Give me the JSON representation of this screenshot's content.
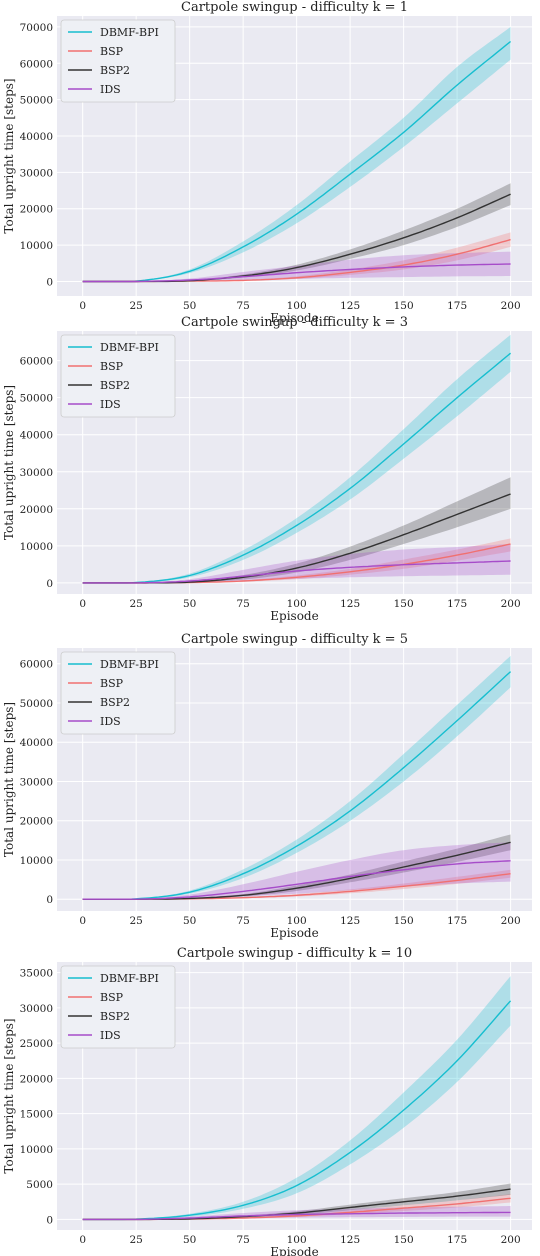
{
  "chart_data": [
    {
      "type": "line",
      "title": "Cartpole swingup - difficulty k = 1",
      "xlabel": "Episode",
      "ylabel": "Total upright time [steps]",
      "xlim": [
        -12,
        210
      ],
      "ylim": [
        -4000,
        73000
      ],
      "xticks": [
        0,
        25,
        50,
        75,
        100,
        125,
        150,
        175,
        200
      ],
      "yticks": [
        0,
        10000,
        20000,
        30000,
        40000,
        50000,
        60000,
        70000
      ],
      "grid": true,
      "legend_position": "top-left",
      "x": [
        0,
        25,
        50,
        75,
        100,
        125,
        150,
        175,
        200
      ],
      "series": [
        {
          "name": "DBMF-BPI",
          "color": "#17becf",
          "values": [
            0,
            100,
            2800,
            9500,
            18500,
            29500,
            41000,
            54000,
            66000
          ],
          "lower": [
            0,
            80,
            2300,
            8000,
            16000,
            26000,
            37000,
            49000,
            61000
          ],
          "upper": [
            0,
            130,
            3300,
            11000,
            21000,
            33000,
            45000,
            59000,
            70000
          ]
        },
        {
          "name": "BSP",
          "color": "#f07070",
          "values": [
            0,
            0,
            100,
            300,
            1000,
            2500,
            4500,
            7500,
            11500
          ],
          "lower": [
            0,
            0,
            50,
            200,
            700,
            1800,
            3300,
            5800,
            9500
          ],
          "upper": [
            0,
            20,
            150,
            450,
            1400,
            3300,
            5800,
            9300,
            13500
          ]
        },
        {
          "name": "BSP2",
          "color": "#333333",
          "values": [
            0,
            0,
            200,
            1500,
            3800,
            7500,
            12000,
            17500,
            24000
          ],
          "lower": [
            0,
            0,
            120,
            1100,
            3000,
            6200,
            10000,
            15000,
            21000
          ],
          "upper": [
            0,
            20,
            300,
            1900,
            4600,
            8800,
            14000,
            20000,
            27000
          ]
        },
        {
          "name": "IDS",
          "color": "#a64cc9",
          "values": [
            0,
            0,
            400,
            1300,
            2400,
            3300,
            4000,
            4500,
            4800
          ],
          "lower": [
            0,
            0,
            100,
            400,
            700,
            1000,
            1200,
            1400,
            1500
          ],
          "upper": [
            0,
            30,
            800,
            2600,
            4300,
            6000,
            7200,
            7800,
            8200
          ]
        }
      ]
    },
    {
      "type": "line",
      "title": "Cartpole swingup - difficulty k = 3",
      "xlabel": "Episode",
      "ylabel": "Total upright time [steps]",
      "xlim": [
        -12,
        210
      ],
      "ylim": [
        -3000,
        68000
      ],
      "xticks": [
        0,
        25,
        50,
        75,
        100,
        125,
        150,
        175,
        200
      ],
      "yticks": [
        0,
        10000,
        20000,
        30000,
        40000,
        50000,
        60000
      ],
      "grid": true,
      "legend_position": "top-left",
      "x": [
        0,
        25,
        50,
        75,
        100,
        125,
        150,
        175,
        200
      ],
      "series": [
        {
          "name": "DBMF-BPI",
          "color": "#17becf",
          "values": [
            0,
            100,
            2000,
            7500,
            15500,
            25500,
            37500,
            50000,
            62000
          ],
          "lower": [
            0,
            70,
            1500,
            6200,
            13500,
            22500,
            33500,
            45000,
            57000
          ],
          "upper": [
            0,
            150,
            2500,
            8800,
            17500,
            28500,
            41500,
            55000,
            67000
          ]
        },
        {
          "name": "BSP",
          "color": "#f07070",
          "values": [
            0,
            0,
            100,
            500,
            1500,
            3000,
            5000,
            7500,
            10500
          ],
          "lower": [
            0,
            0,
            50,
            300,
            1000,
            2200,
            3800,
            6000,
            8500
          ],
          "upper": [
            0,
            20,
            150,
            700,
            2000,
            3800,
            6300,
            9000,
            12000
          ]
        },
        {
          "name": "BSP2",
          "color": "#333333",
          "values": [
            0,
            0,
            200,
            1500,
            4000,
            8000,
            13000,
            18500,
            24000
          ],
          "lower": [
            0,
            0,
            120,
            900,
            2800,
            6200,
            10500,
            15000,
            20000
          ],
          "upper": [
            0,
            20,
            320,
            2100,
            5200,
            9800,
            15500,
            22000,
            28500
          ]
        },
        {
          "name": "IDS",
          "color": "#a64cc9",
          "values": [
            0,
            0,
            500,
            1800,
            3200,
            4200,
            4900,
            5400,
            5900
          ],
          "lower": [
            0,
            0,
            150,
            600,
            1100,
            1500,
            1800,
            2000,
            2200
          ],
          "upper": [
            0,
            40,
            1000,
            3500,
            6000,
            7800,
            9000,
            9700,
            10500
          ]
        }
      ]
    },
    {
      "type": "line",
      "title": "Cartpole swingup - difficulty k = 5",
      "xlabel": "Episode",
      "ylabel": "Total upright time [steps]",
      "xlim": [
        -12,
        210
      ],
      "ylim": [
        -3000,
        64000
      ],
      "xticks": [
        0,
        25,
        50,
        75,
        100,
        125,
        150,
        175,
        200
      ],
      "yticks": [
        0,
        10000,
        20000,
        30000,
        40000,
        50000,
        60000
      ],
      "grid": true,
      "legend_position": "top-left",
      "x": [
        0,
        25,
        50,
        75,
        100,
        125,
        150,
        175,
        200
      ],
      "series": [
        {
          "name": "DBMF-BPI",
          "color": "#17becf",
          "values": [
            0,
            100,
            1800,
            6500,
            13500,
            22500,
            33500,
            45500,
            58000
          ],
          "lower": [
            0,
            70,
            1400,
            5400,
            11800,
            20000,
            30000,
            41500,
            54000
          ],
          "upper": [
            0,
            140,
            2200,
            7600,
            15200,
            25000,
            37000,
            49500,
            62000
          ]
        },
        {
          "name": "BSP",
          "color": "#f07070",
          "values": [
            0,
            0,
            100,
            400,
            1000,
            2000,
            3300,
            4800,
            6500
          ],
          "lower": [
            0,
            0,
            60,
            250,
            700,
            1500,
            2600,
            3900,
            5500
          ],
          "upper": [
            0,
            20,
            140,
            550,
            1300,
            2500,
            4000,
            5700,
            7500
          ]
        },
        {
          "name": "BSP2",
          "color": "#333333",
          "values": [
            0,
            0,
            200,
            1000,
            2800,
            5300,
            8200,
            11200,
            14500
          ],
          "lower": [
            0,
            0,
            120,
            700,
            2100,
            4300,
            6800,
            9500,
            12500
          ],
          "upper": [
            0,
            20,
            300,
            1300,
            3500,
            6300,
            9600,
            12900,
            16500
          ]
        },
        {
          "name": "IDS",
          "color": "#a64cc9",
          "values": [
            0,
            0,
            600,
            2000,
            3800,
            5800,
            7500,
            9000,
            9800
          ],
          "lower": [
            0,
            0,
            200,
            700,
            1400,
            2300,
            3200,
            4000,
            4500
          ],
          "upper": [
            0,
            60,
            1200,
            3800,
            7000,
            10000,
            12500,
            13800,
            14500
          ]
        }
      ]
    },
    {
      "type": "line",
      "title": "Cartpole swingup - difficulty k = 10",
      "xlabel": "Episode",
      "ylabel": "Total upright time [steps]",
      "xlim": [
        -12,
        210
      ],
      "ylim": [
        -1500,
        36500
      ],
      "xticks": [
        0,
        25,
        50,
        75,
        100,
        125,
        150,
        175,
        200
      ],
      "yticks": [
        0,
        5000,
        10000,
        15000,
        20000,
        25000,
        30000,
        35000
      ],
      "grid": true,
      "legend_position": "top-left",
      "x": [
        0,
        25,
        50,
        75,
        100,
        125,
        150,
        175,
        200
      ],
      "series": [
        {
          "name": "DBMF-BPI",
          "color": "#17becf",
          "values": [
            0,
            50,
            600,
            2000,
            4800,
            9500,
            15500,
            22500,
            31000
          ],
          "lower": [
            0,
            30,
            400,
            1500,
            3700,
            7800,
            13000,
            19500,
            27500
          ],
          "upper": [
            0,
            80,
            800,
            2500,
            5900,
            11200,
            18000,
            25500,
            34500
          ]
        },
        {
          "name": "BSP",
          "color": "#f07070",
          "values": [
            0,
            0,
            50,
            200,
            500,
            1000,
            1600,
            2200,
            3000
          ],
          "lower": [
            0,
            0,
            30,
            120,
            350,
            750,
            1200,
            1700,
            2400
          ],
          "upper": [
            0,
            10,
            70,
            280,
            650,
            1250,
            2000,
            2700,
            3600
          ]
        },
        {
          "name": "BSP2",
          "color": "#333333",
          "values": [
            0,
            0,
            80,
            400,
            900,
            1700,
            2500,
            3300,
            4300
          ],
          "lower": [
            0,
            0,
            50,
            280,
            650,
            1300,
            2000,
            2700,
            3500
          ],
          "upper": [
            0,
            10,
            110,
            520,
            1150,
            2100,
            3000,
            3900,
            5100
          ]
        },
        {
          "name": "IDS",
          "color": "#a64cc9",
          "values": [
            0,
            0,
            200,
            500,
            700,
            800,
            900,
            950,
            1000
          ],
          "lower": [
            0,
            0,
            50,
            150,
            250,
            300,
            350,
            400,
            400
          ],
          "upper": [
            0,
            20,
            400,
            900,
            1300,
            1500,
            1700,
            1800,
            1900
          ]
        }
      ]
    }
  ]
}
